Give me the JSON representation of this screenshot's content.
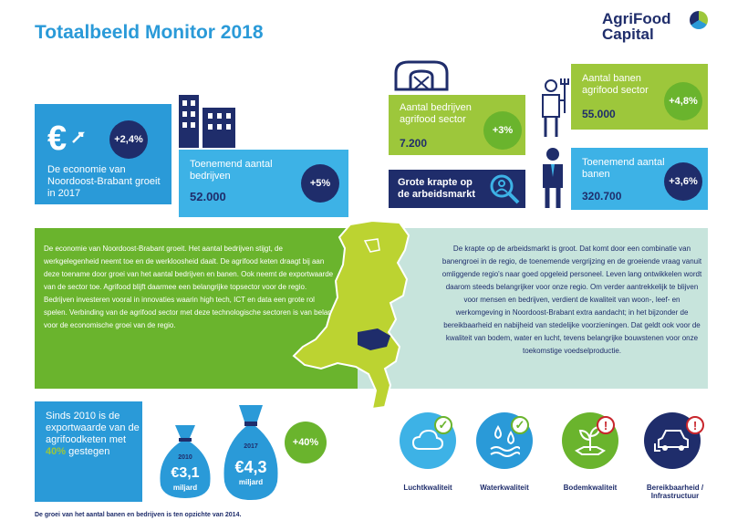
{
  "title": "Totaalbeeld Monitor 2018",
  "logo": {
    "line1": "AgriFood",
    "line2": "Capital"
  },
  "economy": {
    "text": "De economie van Noordoost-Brabant groeit in 2017",
    "change": "+2,4%"
  },
  "companies": {
    "label": "Toenemend aantal bedrijven",
    "value": "52.000",
    "change": "+5%"
  },
  "agri_companies": {
    "label": "Aantal bedrijven agrifood sector",
    "value": "7.200",
    "change": "+3%"
  },
  "agri_jobs": {
    "label": "Aantal banen agrifood sector",
    "value": "55.000",
    "change": "+4,8%"
  },
  "labour": {
    "text": "Grote krapte op de arbeidsmarkt"
  },
  "jobs": {
    "label": "Toenemend aantal banen",
    "value": "320.700",
    "change": "+3,6%"
  },
  "left_paragraph": "De economie van Noordoost-Brabant groeit. Het aantal bedrijven stijgt, de werkgelegenheid neemt toe en de werkloosheid daalt. De agrifood keten draagt bij aan deze toename door groei van het aantal bedrijven en banen. Ook neemt de exportwaarde van de sector toe. Agrifood blijft daarmee een belangrijke topsector voor de regio. Bedrijven investeren vooral in innovaties waarin high tech, ICT en data een grote rol spelen. Verbinding van de agrifood sector met deze technologische sectoren is van belang voor de economische groei van de regio.",
  "right_paragraph": "De krapte op de arbeidsmarkt is groot. Dat komt door een combinatie van banengroei in de regio, de toenemende vergrijzing en de groeiende vraag vanuit omliggende regio's naar goed opgeleid personeel. Leven lang ontwikkelen wordt daarom steeds belangrijker voor onze regio. Om verder aantrekkelijk te blijven voor mensen en bedrijven, verdient de kwaliteit van woon-, leef- en werkomgeving in Noordoost-Brabant extra aandacht; in het bijzonder de bereikbaarheid en nabijheid van stedelijke voorzieningen. Dat geldt ook voor de kwaliteit van bodem, water en lucht, tevens belangrijke bouwstenen voor onze toekomstige voedselproductie.",
  "export": {
    "text_before": "Sinds 2010 is de exportwaarde van de agrifoodketen met ",
    "highlight": "40%",
    "text_after": " gestegen",
    "bag_2010_year": "2010",
    "bag_2010_value": "€3,1",
    "bag_2010_unit": "miljard",
    "bag_2017_year": "2017",
    "bag_2017_value": "€4,3",
    "bag_2017_unit": "miljard",
    "change": "+40%"
  },
  "environment": [
    {
      "label": "Luchtkwaliteit",
      "status": "✓",
      "icon": "cloud-icon"
    },
    {
      "label": "Waterkwaliteit",
      "status": "✓",
      "icon": "water-drops-icon"
    },
    {
      "label": "Bodemkwaliteit",
      "status": "!",
      "icon": "seedling-icon"
    },
    {
      "label": "Bereikbaarheid / Infrastructuur",
      "status": "!",
      "icon": "cars-icon"
    }
  ],
  "footnote": "De groei van het aantal banen en bedrijven is ten opzichte van 2014.",
  "colors": {
    "blue": "#2a9ad8",
    "light_blue": "#3db2e6",
    "navy": "#1f2d6b",
    "green": "#6ab42d",
    "light_green": "#9dc73b",
    "pale_green": "#bedc8c",
    "teal_bg": "#c7e4dc",
    "red": "#c8252c"
  }
}
